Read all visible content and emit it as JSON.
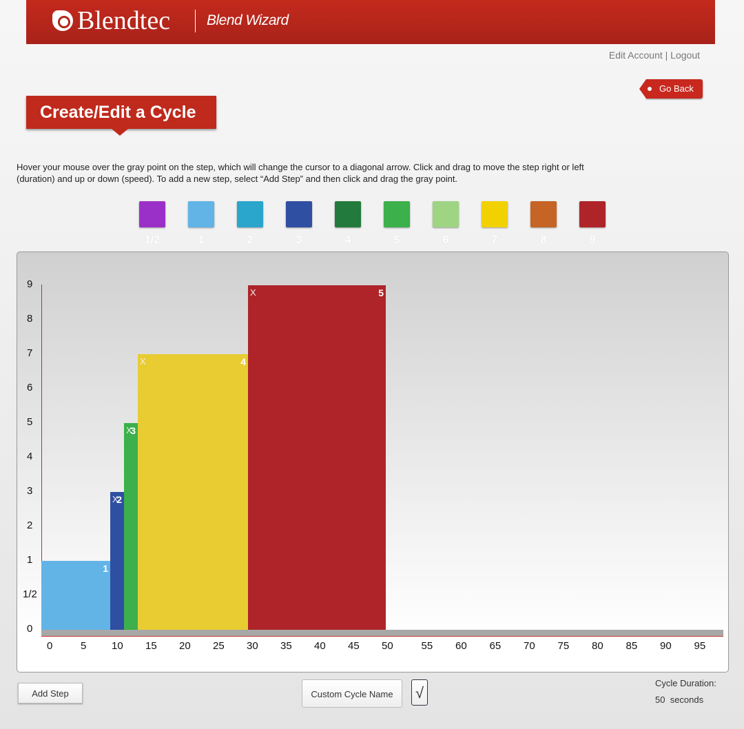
{
  "header": {
    "brand": "Blendtec",
    "product": "Blend Wizard"
  },
  "account": {
    "edit": "Edit Account",
    "sep": "|",
    "logout": "Logout"
  },
  "go_back": "Go Back",
  "page_title": "Create/Edit a Cycle",
  "instructions": "Hover your mouse over the gray point on the step, which will change the cursor to a diagonal arrow. Click and drag to move the step right or left (duration) and up or down (speed). To add a new step, select “Add Step” and then click and drag the gray point.",
  "speed_palette": [
    {
      "label": "1/2",
      "color": "#9b30c8"
    },
    {
      "label": "1",
      "color": "#62b4e6"
    },
    {
      "label": "2",
      "color": "#2aa6cc"
    },
    {
      "label": "3",
      "color": "#2f4fa2"
    },
    {
      "label": "4",
      "color": "#227a3c"
    },
    {
      "label": "5",
      "color": "#3cb04a"
    },
    {
      "label": "6",
      "color": "#9fd483"
    },
    {
      "label": "7",
      "color": "#f2d100"
    },
    {
      "label": "8",
      "color": "#c56424"
    },
    {
      "label": "9",
      "color": "#ae2428"
    }
  ],
  "chart_data": {
    "type": "bar",
    "xlabel": "",
    "ylabel": "",
    "x_ticks": [
      0,
      5,
      10,
      15,
      20,
      25,
      30,
      35,
      40,
      45,
      50,
      55,
      60,
      65,
      70,
      75,
      80,
      85,
      90,
      95
    ],
    "y_ticks": [
      "0",
      "1/2",
      "1",
      "2",
      "3",
      "4",
      "5",
      "6",
      "7",
      "8",
      "9"
    ],
    "xlim": [
      0,
      99
    ],
    "steps": [
      {
        "number": "1",
        "start": 0,
        "end": 10,
        "speed": "1",
        "color": "#62b4e6",
        "show_x": false
      },
      {
        "number": "2",
        "start": 10,
        "end": 12,
        "speed": "3",
        "color": "#2f4fa2",
        "show_x": true
      },
      {
        "number": "3",
        "start": 12,
        "end": 14,
        "speed": "5",
        "color": "#3cb04a",
        "show_x": true
      },
      {
        "number": "4",
        "start": 14,
        "end": 30,
        "speed": "7",
        "color": "#e8cc32",
        "show_x": true
      },
      {
        "number": "5",
        "start": 30,
        "end": 50,
        "speed": "9",
        "color": "#ae2428",
        "show_x": true
      }
    ],
    "delete_mark": "X"
  },
  "controls": {
    "add_step": "Add Step",
    "name_placeholder": "Custom Cycle Name",
    "confirm": "√"
  },
  "duration": {
    "label": "Cycle Duration:",
    "value": "50",
    "unit": "seconds"
  }
}
